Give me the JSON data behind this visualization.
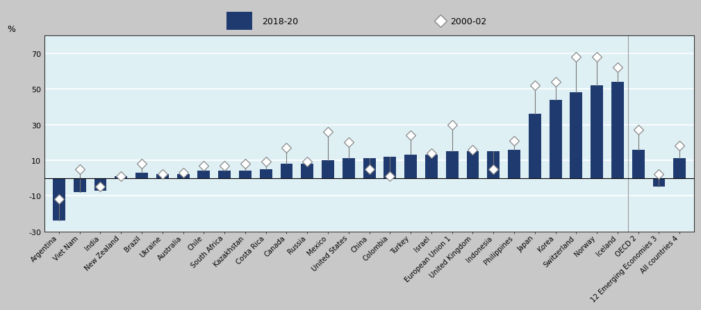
{
  "categories": [
    "Argentina",
    "Viet Nam",
    "India",
    "New Zealand",
    "Brazil",
    "Ukraine",
    "Australia",
    "Chile",
    "South Africa",
    "Kazakhstan",
    "Costa Rica",
    "Canada",
    "Russia",
    "Mexico",
    "United States",
    "China",
    "Colombia",
    "Turkey",
    "Israel",
    "European Union 1",
    "United Kingdom",
    "Indonesia",
    "Philippines",
    "Japan",
    "Korea",
    "Switzerland",
    "Norway",
    "Iceland",
    "OECD 2",
    "12 Emerging Economies 3",
    "All countries 4"
  ],
  "bar_2018_20": [
    -24,
    -8,
    -7,
    1,
    3,
    2,
    2,
    4,
    4,
    4,
    5,
    8,
    8,
    10,
    11,
    11,
    12,
    13,
    13,
    15,
    15,
    15,
    16,
    36,
    44,
    48,
    52,
    54,
    16,
    -5,
    11
  ],
  "diamond_2000_02": [
    -12,
    5,
    -5,
    1,
    8,
    2,
    3,
    7,
    7,
    8,
    9,
    17,
    9,
    26,
    20,
    5,
    1,
    24,
    14,
    30,
    16,
    5,
    21,
    52,
    54,
    68,
    68,
    62,
    27,
    2,
    18
  ],
  "bar_color": "#1f3a6e",
  "diamond_facecolor": "#ffffff",
  "diamond_edgecolor": "#888888",
  "plot_bg_color": "#dff0f5",
  "fig_bg_color": "#c8c8c8",
  "header_bg_color": "#c8c8c8",
  "plot_area_bg": "#dff0f5",
  "grid_color": "#ffffff",
  "ylabel": "%",
  "ylim": [
    -30,
    80
  ],
  "yticks": [
    -30,
    -10,
    10,
    30,
    50,
    70
  ],
  "legend_bar_label": "2018-20",
  "legend_diamond_label": "2000-02",
  "separator_after_index": 27
}
